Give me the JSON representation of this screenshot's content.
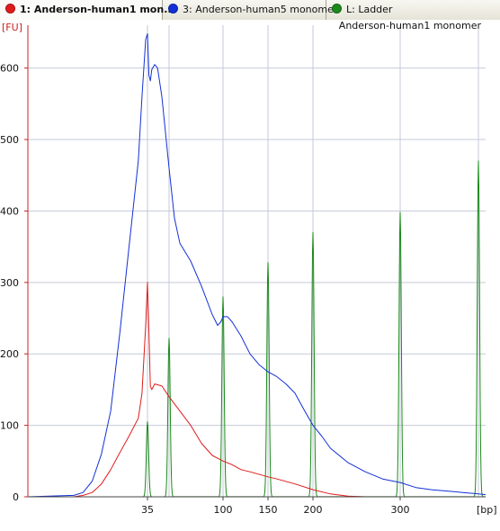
{
  "tabs": [
    {
      "label": "1: Anderson-human1 mon...",
      "color": "#e01b1b",
      "active": true
    },
    {
      "label": "3: Anderson-human5 monomer",
      "color": "#1330d6",
      "active": false
    },
    {
      "label": "L: Ladder",
      "color": "#1a8a1a",
      "active": false
    }
  ],
  "chart_data": {
    "type": "line",
    "title": "Anderson-human1 monomer",
    "ylabel": "[FU]",
    "xlabel": "[bp]",
    "ylim": [
      0,
      660
    ],
    "yticks": [
      0,
      100,
      200,
      300,
      400,
      500,
      600
    ],
    "xticks": [
      {
        "label": "35",
        "pos": 35
      },
      {
        "label": "100",
        "pos": 100
      },
      {
        "label": "150",
        "pos": 150
      },
      {
        "label": "200",
        "pos": 200
      },
      {
        "label": "300",
        "pos": 300
      }
    ],
    "grid": true,
    "ladder_peak_positions": [
      35,
      50,
      100,
      150,
      200,
      300,
      400
    ],
    "series": [
      {
        "name": "L: Ladder",
        "color": "#1a8a1a",
        "peaks": [
          [
            35,
            105
          ],
          [
            50,
            222
          ],
          [
            100,
            280
          ],
          [
            150,
            328
          ],
          [
            200,
            370
          ],
          [
            300,
            398
          ],
          [
            400,
            470
          ]
        ]
      },
      {
        "name": "3: Anderson-human5 monomer",
        "color": "#1330d6",
        "points": [
          [
            -30,
            0
          ],
          [
            -5,
            2
          ],
          [
            0,
            6
          ],
          [
            5,
            22
          ],
          [
            10,
            60
          ],
          [
            15,
            120
          ],
          [
            20,
            230
          ],
          [
            25,
            350
          ],
          [
            30,
            470
          ],
          [
            32,
            560
          ],
          [
            34,
            640
          ],
          [
            35,
            648
          ],
          [
            36,
            590
          ],
          [
            37,
            582
          ],
          [
            38,
            598
          ],
          [
            40,
            605
          ],
          [
            42,
            600
          ],
          [
            45,
            560
          ],
          [
            50,
            460
          ],
          [
            55,
            390
          ],
          [
            60,
            355
          ],
          [
            70,
            330
          ],
          [
            80,
            295
          ],
          [
            90,
            255
          ],
          [
            95,
            240
          ],
          [
            98,
            245
          ],
          [
            100,
            252
          ],
          [
            105,
            252
          ],
          [
            110,
            245
          ],
          [
            120,
            225
          ],
          [
            130,
            200
          ],
          [
            140,
            185
          ],
          [
            150,
            175
          ],
          [
            160,
            168
          ],
          [
            170,
            158
          ],
          [
            180,
            145
          ],
          [
            190,
            122
          ],
          [
            200,
            100
          ],
          [
            210,
            85
          ],
          [
            220,
            68
          ],
          [
            240,
            48
          ],
          [
            260,
            35
          ],
          [
            280,
            25
          ],
          [
            300,
            20
          ],
          [
            320,
            13
          ],
          [
            340,
            10
          ],
          [
            360,
            8
          ],
          [
            380,
            6
          ],
          [
            400,
            4
          ],
          [
            410,
            3
          ]
        ]
      },
      {
        "name": "1: Anderson-human1 monomer",
        "color": "#e01b1b",
        "points": [
          [
            -30,
            0
          ],
          [
            -5,
            0
          ],
          [
            0,
            2
          ],
          [
            5,
            6
          ],
          [
            10,
            18
          ],
          [
            15,
            38
          ],
          [
            20,
            62
          ],
          [
            25,
            85
          ],
          [
            30,
            110
          ],
          [
            32,
            145
          ],
          [
            34,
            240
          ],
          [
            35,
            300
          ],
          [
            36,
            230
          ],
          [
            37,
            155
          ],
          [
            38,
            150
          ],
          [
            40,
            158
          ],
          [
            45,
            155
          ],
          [
            50,
            140
          ],
          [
            60,
            120
          ],
          [
            70,
            100
          ],
          [
            80,
            75
          ],
          [
            90,
            58
          ],
          [
            100,
            50
          ],
          [
            110,
            45
          ],
          [
            120,
            38
          ],
          [
            130,
            35
          ],
          [
            150,
            28
          ],
          [
            160,
            25
          ],
          [
            180,
            18
          ],
          [
            200,
            10
          ],
          [
            220,
            4
          ],
          [
            240,
            1
          ],
          [
            260,
            0
          ],
          [
            410,
            0
          ]
        ]
      }
    ]
  }
}
